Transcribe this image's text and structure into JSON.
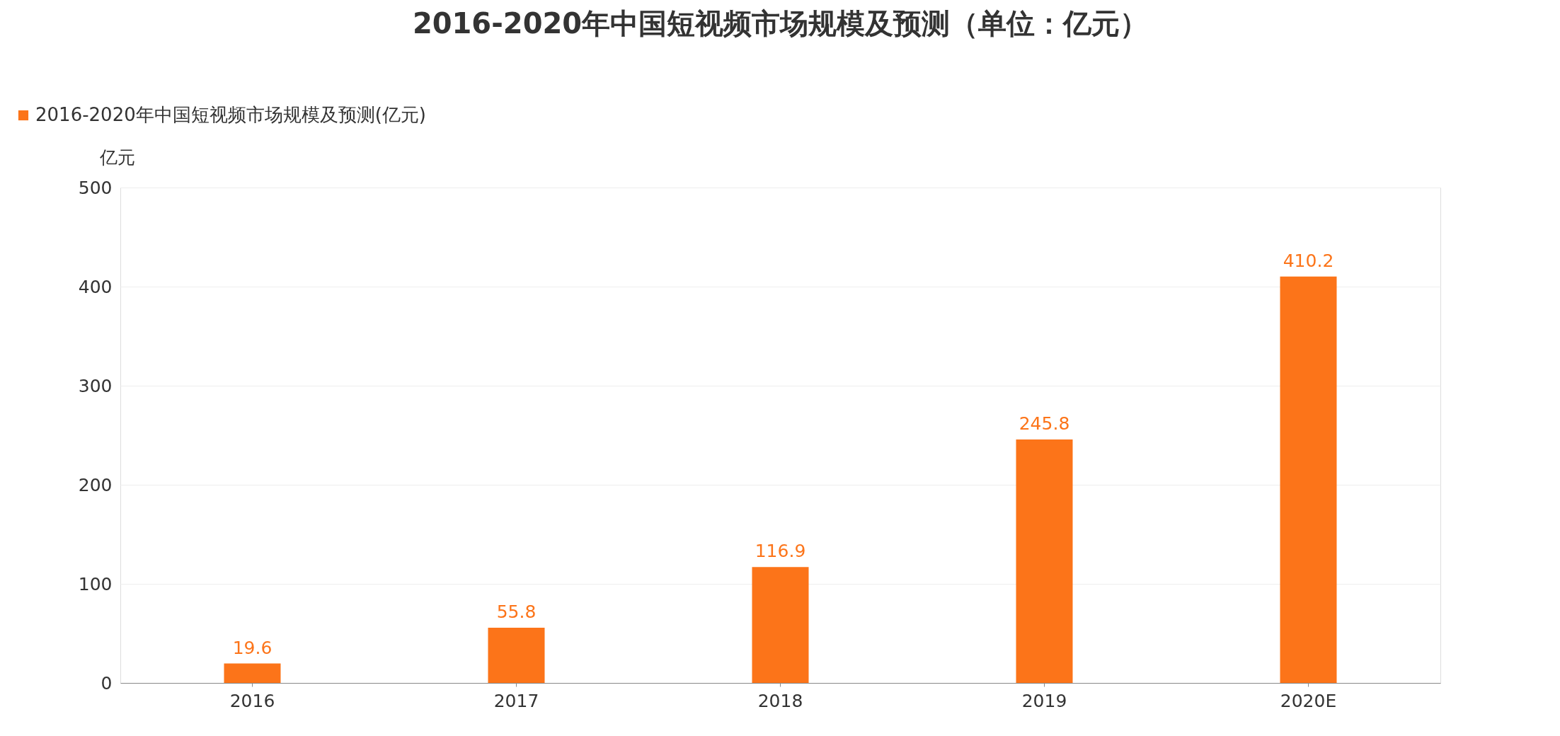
{
  "chart_data": {
    "type": "bar",
    "title": "2016-2020年中国短视频市场规模及预测（单位：亿元）",
    "ylabel": "亿元",
    "categories": [
      "2016",
      "2017",
      "2018",
      "2019",
      "2020E"
    ],
    "series": [
      {
        "name": "2016-2020年中国短视频市场规模及预测(亿元)",
        "color": "#fc7419",
        "values": [
          19.6,
          55.8,
          116.9,
          245.8,
          410.2
        ]
      }
    ],
    "ylim": [
      0,
      500
    ],
    "yticks": [
      0,
      100,
      200,
      300,
      400,
      500
    ],
    "grid": "y",
    "data_labels": true,
    "legend": "top left"
  }
}
